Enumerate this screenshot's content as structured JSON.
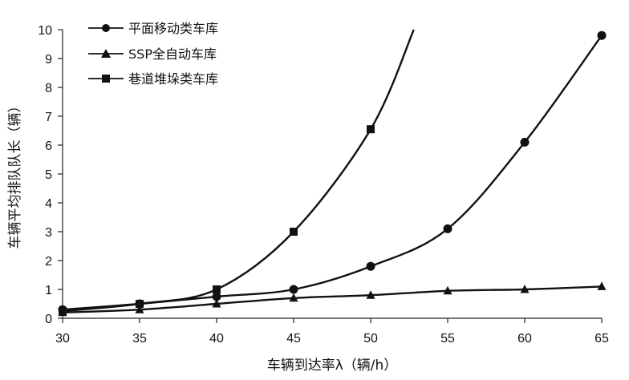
{
  "chart_data": {
    "type": "line",
    "title": "",
    "xlabel": "车辆到达率λ（辆/h）",
    "ylabel": "车辆平均排队队长（辆）",
    "xlim": [
      30,
      65
    ],
    "ylim": [
      0,
      10
    ],
    "xticks": [
      "30",
      "35",
      "40",
      "45",
      "50",
      "55",
      "60",
      "65"
    ],
    "yticks": [
      "0",
      "1",
      "2",
      "3",
      "4",
      "5",
      "6",
      "7",
      "8",
      "9",
      "10"
    ],
    "grid": false,
    "legend_position": "top-left",
    "series": [
      {
        "name": "平面移动类车库",
        "marker": "circle",
        "x": [
          30,
          35,
          40,
          45,
          50,
          55,
          60,
          65
        ],
        "y": [
          0.3,
          0.5,
          0.75,
          1.0,
          1.8,
          3.1,
          6.1,
          9.8
        ]
      },
      {
        "name": "SSP全自动车库",
        "marker": "triangle",
        "x": [
          30,
          35,
          40,
          45,
          50,
          55,
          60,
          65
        ],
        "y": [
          0.2,
          0.3,
          0.5,
          0.7,
          0.8,
          0.95,
          1.0,
          1.1
        ]
      },
      {
        "name": "巷道堆垛类车库",
        "marker": "square",
        "x": [
          30,
          35,
          40,
          45,
          50
        ],
        "y": [
          0.25,
          0.5,
          1.0,
          3.0,
          6.55
        ],
        "extends_beyond_plot": true,
        "curve_continuation": {
          "x": [
            52.8
          ],
          "y": [
            10
          ]
        }
      }
    ]
  }
}
